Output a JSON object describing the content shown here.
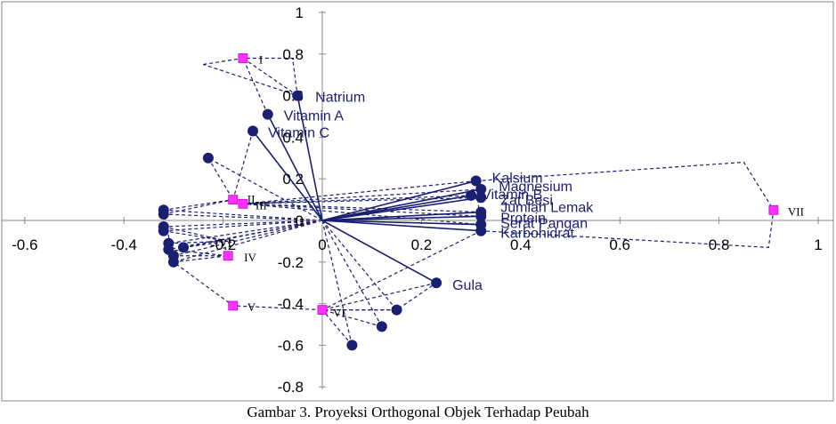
{
  "caption": "Gambar 3.  Proyeksi Orthogonal Objek Terhadap Peubah",
  "chart_data": {
    "type": "scatter",
    "title": "",
    "xlabel": "",
    "ylabel": "",
    "xlim": [
      -0.6,
      1
    ],
    "ylim": [
      -0.8,
      1
    ],
    "grid": false,
    "x_ticks": [
      "-0.6",
      "-0.4",
      "-0.2",
      "0",
      "0.2",
      "0.4",
      "0.6",
      "0.8",
      "1"
    ],
    "y_ticks": [
      "1",
      "0.8",
      "0.6",
      "0.4",
      "0.2",
      "0",
      "-0.2",
      "-0.4",
      "-0.6",
      "-0.8"
    ],
    "variables": [
      {
        "name": "Natrium",
        "x": -0.05,
        "y": 0.6
      },
      {
        "name": "Vitamin A",
        "x": -0.11,
        "y": 0.51
      },
      {
        "name": "Vitamin C",
        "x": -0.14,
        "y": 0.43
      },
      {
        "name": "Kalsium",
        "x": 0.31,
        "y": 0.19
      },
      {
        "name": "Magnesium",
        "x": 0.32,
        "y": 0.15
      },
      {
        "name": "Vitamin B",
        "x": 0.3,
        "y": 0.12
      },
      {
        "name": "Zat Besi",
        "x": 0.32,
        "y": 0.11
      },
      {
        "name": "Jumlah Lemak",
        "x": 0.32,
        "y": 0.04
      },
      {
        "name": "Protein",
        "x": 0.32,
        "y": 0.02
      },
      {
        "name": "Serat Pangan",
        "x": 0.32,
        "y": -0.02
      },
      {
        "name": "Karbohidrat",
        "x": 0.32,
        "y": -0.05
      },
      {
        "name": "Gula",
        "x": 0.23,
        "y": -0.3
      }
    ],
    "unlabeled_points": [
      {
        "x": -0.23,
        "y": 0.3
      },
      {
        "x": -0.32,
        "y": 0.05
      },
      {
        "x": -0.32,
        "y": 0.03
      },
      {
        "x": -0.32,
        "y": -0.03
      },
      {
        "x": -0.32,
        "y": -0.05
      },
      {
        "x": -0.31,
        "y": -0.11
      },
      {
        "x": -0.28,
        "y": -0.13
      },
      {
        "x": -0.31,
        "y": -0.14
      },
      {
        "x": -0.3,
        "y": -0.17
      },
      {
        "x": -0.3,
        "y": -0.2
      },
      {
        "x": 0.15,
        "y": -0.43
      },
      {
        "x": 0.12,
        "y": -0.51
      },
      {
        "x": 0.06,
        "y": -0.6
      }
    ],
    "objects": [
      {
        "name": "I",
        "x": -0.16,
        "y": 0.78
      },
      {
        "name": "II",
        "x": -0.18,
        "y": 0.1
      },
      {
        "name": "III",
        "x": -0.16,
        "y": 0.08
      },
      {
        "name": "IV",
        "x": -0.19,
        "y": -0.17
      },
      {
        "name": "V",
        "x": -0.18,
        "y": -0.41
      },
      {
        "name": "VI",
        "x": -0.19,
        "y": -0.1
      },
      {
        "name": "VI",
        "x": 0.0,
        "y": -0.43
      },
      {
        "name": "VII",
        "x": 0.91,
        "y": 0.05
      }
    ]
  }
}
